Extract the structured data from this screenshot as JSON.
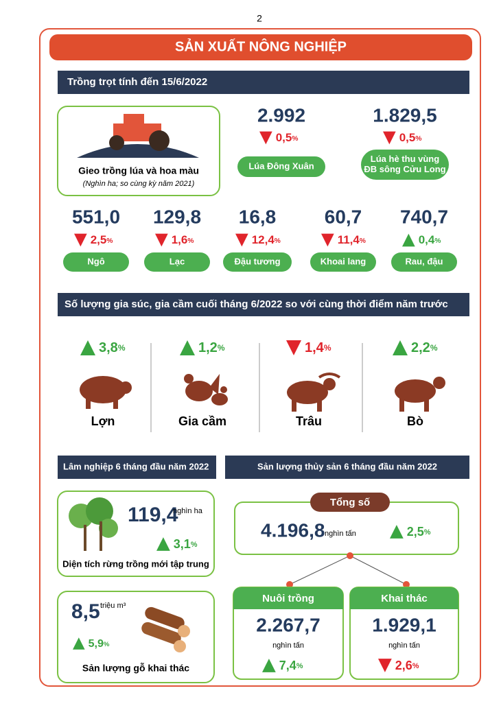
{
  "page_number": "2",
  "title": "SẢN XUẤT NÔNG NGHIỆP",
  "crops": {
    "heading": "Trồng trọt tính đến 15/6/2022",
    "label": "Gieo trồng lúa và hoa màu",
    "note": "(Nghìn ha; so cùng kỳ năm 2021)",
    "items": [
      {
        "value": "2.992",
        "direction": "down",
        "change": "0,5",
        "change_unit": "%",
        "name": [
          "Lúa Đông Xuân"
        ]
      },
      {
        "value": "1.829,5",
        "direction": "down",
        "change": "0,5",
        "change_unit": "%",
        "name": [
          "Lúa hè thu vùng",
          "ĐB sông Cửu Long"
        ]
      },
      {
        "value": "551,0",
        "direction": "down",
        "change": "2,5",
        "change_unit": "%",
        "name": [
          "Ngô"
        ]
      },
      {
        "value": "129,8",
        "direction": "down",
        "change": "1,6",
        "change_unit": "%",
        "name": [
          "Lạc"
        ]
      },
      {
        "value": "16,8",
        "direction": "down",
        "change": "12,4",
        "change_unit": "%",
        "name": [
          "Đậu tương"
        ]
      },
      {
        "value": "60,7",
        "direction": "down",
        "change": "11,4",
        "change_unit": "%",
        "name": [
          "Khoai lang"
        ]
      },
      {
        "value": "740,7",
        "direction": "up",
        "change": "0,4",
        "change_unit": "%",
        "name": [
          "Rau, đậu"
        ]
      }
    ]
  },
  "livestock": {
    "heading": "Số lượng gia súc, gia cầm cuối tháng 6/2022 so với cùng thời điểm năm trước",
    "items": [
      {
        "name": "Lợn",
        "direction": "up",
        "change": "3,8",
        "change_unit": "%"
      },
      {
        "name": "Gia cầm",
        "direction": "up",
        "change": "1,2",
        "change_unit": "%"
      },
      {
        "name": "Trâu",
        "direction": "down",
        "change": "1,4",
        "change_unit": "%"
      },
      {
        "name": "Bò",
        "direction": "up",
        "change": "2,2",
        "change_unit": "%"
      }
    ]
  },
  "forestry": {
    "heading": "Lâm nghiệp 6 tháng đầu năm 2022",
    "planted": {
      "value": "119,4",
      "unit": "nghìn ha",
      "direction": "up",
      "change": "3,1",
      "change_unit": "%",
      "caption": "Diện tích rừng trồng mới tập trung"
    },
    "timber": {
      "value": "8,5",
      "unit": "triệu m³",
      "direction": "up",
      "change": "5,9",
      "change_unit": "%",
      "caption": "Sản lượng gỗ khai thác"
    }
  },
  "fishery": {
    "heading": "Sản lượng thủy sản 6 tháng đầu năm 2022",
    "total": {
      "label": "Tổng số",
      "value": "4.196,8",
      "unit": "nghìn tấn",
      "direction": "up",
      "change": "2,5",
      "change_unit": "%"
    },
    "parts": [
      {
        "label": "Nuôi trồng",
        "value": "2.267,7",
        "unit": "nghìn tấn",
        "direction": "up",
        "change": "7,4",
        "change_unit": "%"
      },
      {
        "label": "Khai thác",
        "value": "1.929,1",
        "unit": "nghìn tấn",
        "direction": "down",
        "change": "2,6",
        "change_unit": "%"
      }
    ]
  }
}
